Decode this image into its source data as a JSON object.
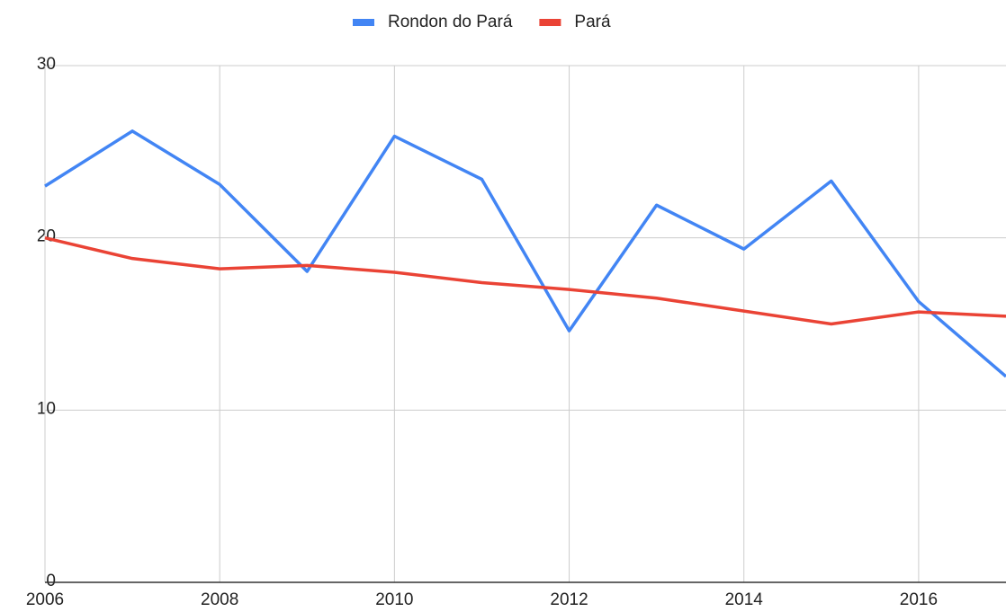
{
  "chart_data": {
    "type": "line",
    "x": [
      2006,
      2007,
      2008,
      2009,
      2010,
      2011,
      2012,
      2013,
      2014,
      2015,
      2016,
      2017
    ],
    "series": [
      {
        "name": "Rondon do Pará",
        "color": "#4285f4",
        "values": [
          23.0,
          26.2,
          23.1,
          18.05,
          25.9,
          23.4,
          14.6,
          21.9,
          19.35,
          23.3,
          16.3,
          11.95
        ]
      },
      {
        "name": "Pará",
        "color": "#ea4335",
        "values": [
          20.0,
          18.8,
          18.2,
          18.4,
          18.0,
          17.4,
          17.0,
          16.5,
          15.75,
          15.0,
          15.7,
          15.45
        ]
      }
    ],
    "xlim": [
      2006,
      2017
    ],
    "xticks": [
      2006,
      2008,
      2010,
      2012,
      2014,
      2016
    ],
    "ylim": [
      0,
      30
    ],
    "yticks": [
      0,
      10,
      20,
      30
    ],
    "grid": true,
    "legend": "top"
  }
}
